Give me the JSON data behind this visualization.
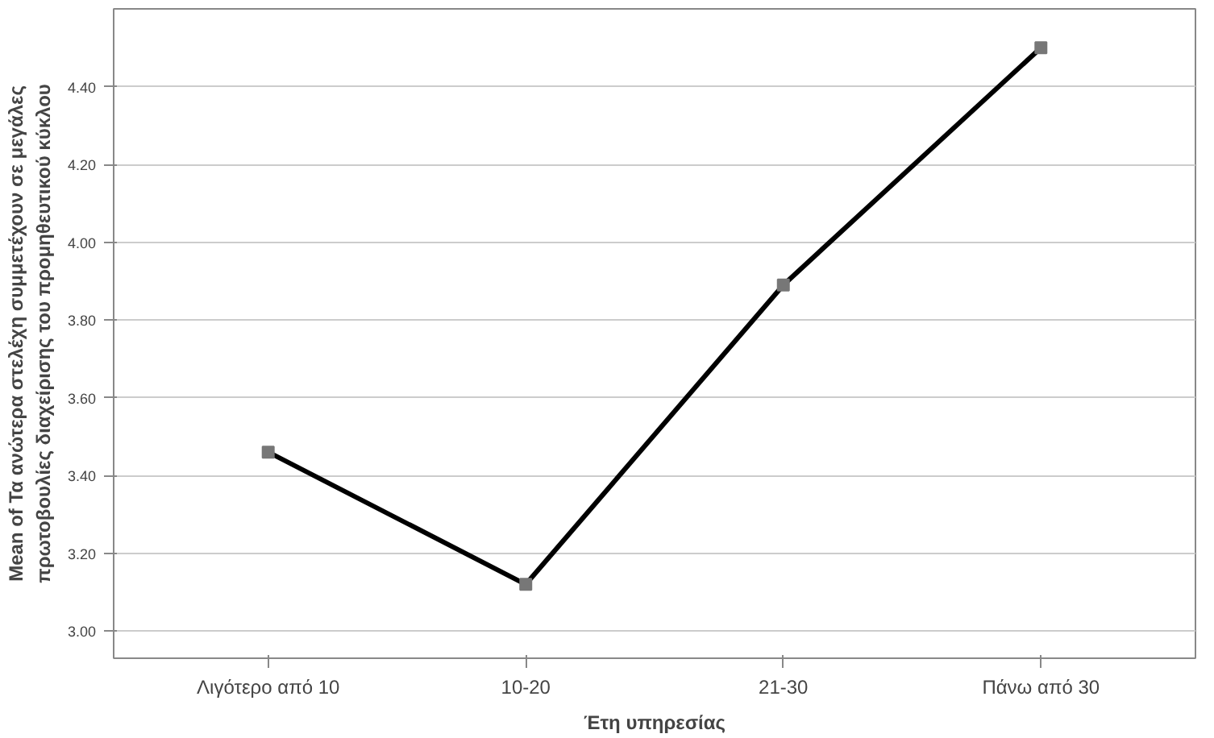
{
  "chart_data": {
    "type": "line",
    "xlabel": "Έτη υπηρεσίας",
    "ylabel": "Mean of Τα ανώτερα στελέχη συμμετέχουν σε μεγάλες\nπρωτοβουλίες διαχείρισης του προμηθευτικού κύκλου",
    "categories": [
      "Λιγότερο από 10",
      "10-20",
      "21-30",
      "Πάνω από 30"
    ],
    "series": [
      {
        "color": "#000000",
        "values": [
          3.46,
          3.12,
          3.89,
          4.5
        ]
      }
    ],
    "marker": "square",
    "line_style": "solid",
    "grid": "y",
    "ylim": [
      2.93,
      4.6
    ],
    "yticks": [
      {
        "value": 3.0,
        "label": "3.00"
      },
      {
        "value": 3.2,
        "label": "3.20"
      },
      {
        "value": 3.4,
        "label": "3.40"
      },
      {
        "value": 3.6,
        "label": "3.60"
      },
      {
        "value": 3.8,
        "label": "3.80"
      },
      {
        "value": 4.0,
        "label": "4.00"
      },
      {
        "value": 4.2,
        "label": "4.20"
      },
      {
        "value": 4.4,
        "label": "4.40"
      }
    ]
  }
}
